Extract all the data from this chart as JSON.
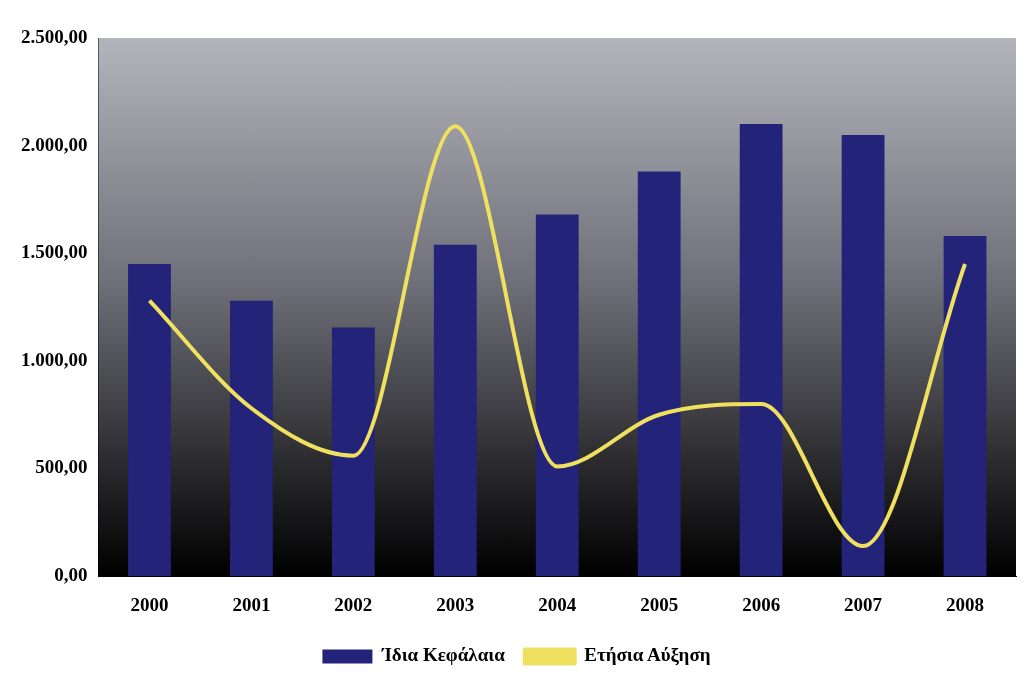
{
  "chart_data": {
    "type": "bar",
    "categories": [
      "2000",
      "2001",
      "2002",
      "2003",
      "2004",
      "2005",
      "2006",
      "2007",
      "2008"
    ],
    "series": [
      {
        "name": "Ίδια Κεφάλαια",
        "color": "#23237a",
        "values": [
          1450,
          1280,
          1155,
          1540,
          1680,
          1880,
          2100,
          2050,
          1580
        ]
      },
      {
        "name": "Ετήσια Αύξηση",
        "type": "line",
        "color": "#f0e060",
        "values": [
          1280,
          780,
          560,
          2090,
          510,
          750,
          800,
          140,
          1450
        ]
      }
    ],
    "ylim": [
      0,
      2500
    ],
    "yticks": [
      {
        "value": 0,
        "label": "0,00"
      },
      {
        "value": 500,
        "label": "500,00"
      },
      {
        "value": 1000,
        "label": "1.000,00"
      },
      {
        "value": 1500,
        "label": "1.500,00"
      },
      {
        "value": 2000,
        "label": "2.000,00"
      },
      {
        "value": 2500,
        "label": "2.500,00"
      }
    ],
    "grid": false,
    "legend": "bottom",
    "marker": "none",
    "line_style": "solid"
  }
}
